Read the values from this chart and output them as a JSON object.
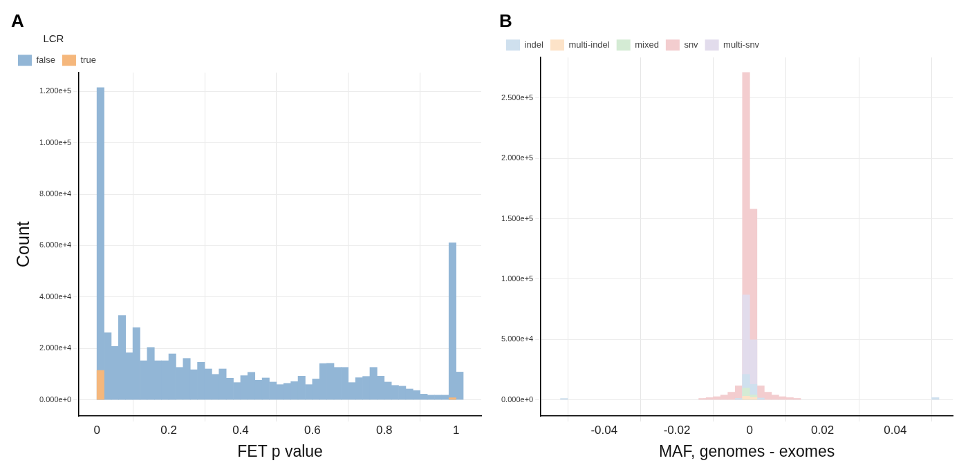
{
  "chart_data": [
    {
      "type": "histogram",
      "title": "A",
      "xlabel": "FET p value",
      "ylabel": "Count",
      "legend_title": "LCR",
      "legend": "top left",
      "grid": true,
      "bins": [
        0,
        0.02,
        0.04,
        0.06,
        0.08,
        0.1,
        0.12,
        0.14,
        0.16,
        0.18,
        0.2,
        0.22,
        0.24,
        0.26,
        0.28,
        0.3,
        0.32,
        0.34,
        0.36,
        0.38,
        0.4,
        0.42,
        0.44,
        0.46,
        0.48,
        0.5,
        0.52,
        0.54,
        0.56,
        0.58,
        0.6,
        0.62,
        0.64,
        0.66,
        0.68,
        0.7,
        0.72,
        0.74,
        0.76,
        0.78,
        0.8,
        0.82,
        0.84,
        0.86,
        0.88,
        0.9,
        0.92,
        0.94,
        0.96,
        0.98,
        1,
        1.02
      ],
      "series": [
        {
          "name": "false",
          "color": "#92b6d6",
          "values": [
            121500,
            26100,
            20800,
            32800,
            18300,
            28100,
            15200,
            20400,
            15200,
            15200,
            17900,
            12600,
            16100,
            11700,
            14600,
            12000,
            9900,
            12000,
            8400,
            6700,
            9400,
            10700,
            7600,
            8500,
            6900,
            5900,
            6400,
            7100,
            9200,
            5900,
            8100,
            14100,
            14200,
            12600,
            12600,
            6700,
            8600,
            9100,
            12600,
            9200,
            6900,
            5600,
            5300,
            4200,
            3600,
            2200,
            1800,
            1800,
            1800,
            61100,
            10800
          ]
        },
        {
          "name": "true",
          "color": "#f5b77c",
          "values": [
            11400,
            0,
            0,
            0,
            0,
            0,
            0,
            0,
            0,
            0,
            0,
            0,
            0,
            0,
            0,
            0,
            0,
            0,
            0,
            0,
            0,
            0,
            0,
            0,
            0,
            0,
            0,
            0,
            0,
            0,
            0,
            0,
            0,
            0,
            0,
            0,
            0,
            0,
            0,
            0,
            0,
            0,
            0,
            0,
            0,
            0,
            0,
            0,
            0,
            800,
            0
          ]
        }
      ],
      "xlim": [
        -0.05,
        1.07
      ],
      "ylim": [
        -6300,
        127300
      ],
      "xticks": [
        0,
        0.2,
        0.4,
        0.6,
        0.8,
        1
      ],
      "yticks": [
        {
          "value": 0,
          "label": "0.000e+0"
        },
        {
          "value": 20000,
          "label": "2.000e+4"
        },
        {
          "value": 40000,
          "label": "4.000e+4"
        },
        {
          "value": 60000,
          "label": "6.000e+4"
        },
        {
          "value": 80000,
          "label": "8.000e+4"
        },
        {
          "value": 100000,
          "label": "1.000e+5"
        },
        {
          "value": 120000,
          "label": "1.200e+5"
        }
      ]
    },
    {
      "type": "histogram",
      "title": "B",
      "xlabel": "MAF, genomes - exomes",
      "legend": "top left",
      "grid": true,
      "bins": [
        -0.052,
        -0.05,
        -0.048,
        -0.046,
        -0.044,
        -0.042,
        -0.04,
        -0.038,
        -0.036,
        -0.034,
        -0.032,
        -0.03,
        -0.028,
        -0.026,
        -0.024,
        -0.022,
        -0.02,
        -0.018,
        -0.016,
        -0.014,
        -0.012,
        -0.01,
        -0.008,
        -0.006,
        -0.004,
        -0.002,
        0,
        0.002,
        0.004,
        0.006,
        0.008,
        0.01,
        0.012,
        0.014,
        0.016,
        0.018,
        0.02,
        0.022,
        0.024,
        0.026,
        0.028,
        0.03,
        0.032,
        0.034,
        0.036,
        0.038,
        0.04,
        0.042,
        0.044,
        0.046,
        0.048,
        0.05,
        0.052
      ],
      "series": [
        {
          "name": "indel",
          "color": "#cfe0ee",
          "values": [
            800,
            0,
            0,
            0,
            0,
            0,
            0,
            0,
            0,
            0,
            0,
            0,
            0,
            0,
            0,
            0,
            0,
            0,
            0,
            0,
            0,
            0,
            0,
            0,
            1200,
            21100,
            12800,
            1500,
            0,
            0,
            0,
            0,
            0,
            0,
            0,
            0,
            0,
            0,
            0,
            0,
            0,
            0,
            0,
            0,
            0,
            0,
            0,
            0,
            0,
            0,
            0,
            1800
          ]
        },
        {
          "name": "multi-indel",
          "color": "#fde3c8",
          "values": [
            0,
            0,
            0,
            0,
            0,
            0,
            0,
            0,
            0,
            0,
            0,
            0,
            0,
            0,
            0,
            0,
            0,
            0,
            0,
            0,
            0,
            0,
            0,
            0,
            0,
            3000,
            2000,
            0,
            0,
            0,
            0,
            0,
            0,
            0,
            0,
            0,
            0,
            0,
            0,
            0,
            0,
            0,
            0,
            0,
            0,
            0,
            0,
            0,
            0,
            0,
            0,
            0
          ]
        },
        {
          "name": "mixed",
          "color": "#d4ebd4",
          "values": [
            0,
            0,
            0,
            0,
            0,
            0,
            0,
            0,
            0,
            0,
            0,
            0,
            0,
            0,
            0,
            0,
            0,
            0,
            0,
            0,
            0,
            0,
            0,
            0,
            0,
            9700,
            4000,
            0,
            0,
            0,
            0,
            0,
            0,
            0,
            0,
            0,
            0,
            0,
            0,
            0,
            0,
            0,
            0,
            0,
            0,
            0,
            0,
            0,
            0,
            0,
            0,
            0
          ]
        },
        {
          "name": "snv",
          "color": "#f3cdcf",
          "values": [
            0,
            0,
            0,
            0,
            0,
            0,
            0,
            0,
            0,
            0,
            0,
            0,
            0,
            0,
            0,
            0,
            0,
            0,
            0,
            1200,
            1800,
            2600,
            3900,
            6300,
            11600,
            271100,
            158000,
            11600,
            6300,
            3900,
            2600,
            1800,
            1200,
            0,
            0,
            0,
            0,
            0,
            0,
            0,
            0,
            0,
            0,
            0,
            0,
            0,
            0,
            0,
            0,
            0,
            0,
            0
          ]
        },
        {
          "name": "multi-snv",
          "color": "#e2dcec",
          "values": [
            0,
            0,
            0,
            0,
            0,
            0,
            0,
            0,
            0,
            0,
            0,
            0,
            0,
            0,
            0,
            0,
            0,
            0,
            0,
            0,
            0,
            0,
            0,
            0,
            0,
            86800,
            49700,
            0,
            0,
            0,
            0,
            0,
            0,
            0,
            0,
            0,
            0,
            0,
            0,
            0,
            0,
            0,
            0,
            0,
            0,
            0,
            0,
            0,
            0,
            0,
            0,
            0
          ]
        }
      ],
      "xlim": [
        -0.0574,
        0.0558
      ],
      "ylim": [
        -13400,
        283500
      ],
      "xticks": [
        -0.04,
        -0.02,
        0,
        0.02,
        0.04
      ],
      "yticks": [
        {
          "value": 0,
          "label": "0.000e+0"
        },
        {
          "value": 50000,
          "label": "5.000e+4"
        },
        {
          "value": 100000,
          "label": "1.000e+5"
        },
        {
          "value": 150000,
          "label": "1.500e+5"
        },
        {
          "value": 200000,
          "label": "2.000e+5"
        },
        {
          "value": 250000,
          "label": "2.500e+5"
        }
      ]
    }
  ]
}
